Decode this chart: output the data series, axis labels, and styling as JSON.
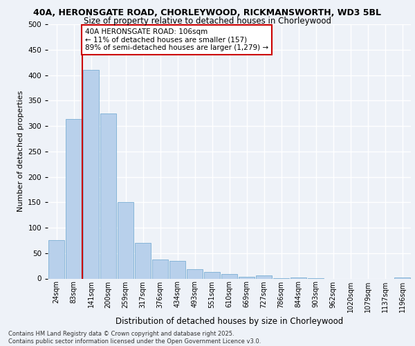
{
  "title_line1": "40A, HERONSGATE ROAD, CHORLEYWOOD, RICKMANSWORTH, WD3 5BL",
  "title_line2": "Size of property relative to detached houses in Chorleywood",
  "xlabel": "Distribution of detached houses by size in Chorleywood",
  "ylabel": "Number of detached properties",
  "categories": [
    "24sqm",
    "83sqm",
    "141sqm",
    "200sqm",
    "259sqm",
    "317sqm",
    "376sqm",
    "434sqm",
    "493sqm",
    "551sqm",
    "610sqm",
    "669sqm",
    "727sqm",
    "786sqm",
    "844sqm",
    "903sqm",
    "962sqm",
    "1020sqm",
    "1079sqm",
    "1137sqm",
    "1196sqm"
  ],
  "values": [
    75,
    314,
    410,
    325,
    150,
    70,
    38,
    35,
    18,
    13,
    9,
    4,
    6,
    1,
    2,
    1,
    0,
    0,
    0,
    0,
    2
  ],
  "bar_color": "#b8d0eb",
  "bar_edge_color": "#7aaed4",
  "vline_x": 1.5,
  "vline_color": "#cc0000",
  "annotation_text": "40A HERONSGATE ROAD: 106sqm\n← 11% of detached houses are smaller (157)\n89% of semi-detached houses are larger (1,279) →",
  "annotation_box_facecolor": "#ffffff",
  "annotation_box_edgecolor": "#cc0000",
  "ylim": [
    0,
    500
  ],
  "background_color": "#eef2f8",
  "footer_text": "Contains HM Land Registry data © Crown copyright and database right 2025.\nContains public sector information licensed under the Open Government Licence v3.0.",
  "grid_color": "#ffffff",
  "title1_fontsize": 9.0,
  "title2_fontsize": 8.5,
  "ylabel_fontsize": 8.0,
  "xlabel_fontsize": 8.5,
  "tick_fontsize": 7.0,
  "footer_fontsize": 6.0,
  "annot_fontsize": 7.5
}
